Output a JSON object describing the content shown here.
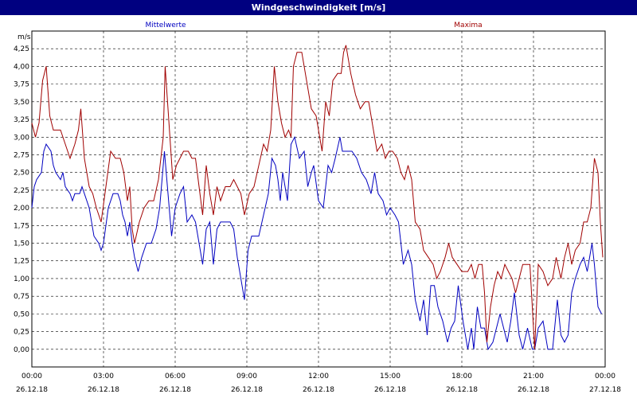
{
  "window": {
    "title": "Windgeschwindigkeit [m/s]"
  },
  "chart_data": {
    "type": "line",
    "title": "Windgeschwindigkeit [m/s]",
    "ylabel": "m/s",
    "ylim": [
      -0.25,
      4.5
    ],
    "xlim_hours": [
      0,
      24
    ],
    "yticks": [
      "0,00",
      "0,25",
      "0,50",
      "0,75",
      "1,00",
      "1,25",
      "1,50",
      "1,75",
      "2,00",
      "2,25",
      "2,50",
      "2,75",
      "3,00",
      "3,25",
      "3,50",
      "3,75",
      "4,00",
      "4,25"
    ],
    "xticks": [
      {
        "time": "00:00",
        "date": "26.12.18"
      },
      {
        "time": "03:00",
        "date": "26.12.18"
      },
      {
        "time": "06:00",
        "date": "26.12.18"
      },
      {
        "time": "09:00",
        "date": "26.12.18"
      },
      {
        "time": "12:00",
        "date": "26.12.18"
      },
      {
        "time": "15:00",
        "date": "26.12.18"
      },
      {
        "time": "18:00",
        "date": "26.12.18"
      },
      {
        "time": "21:00",
        "date": "26.12.18"
      },
      {
        "time": "00:00",
        "date": "27.12.18"
      }
    ],
    "grid": true,
    "series": [
      {
        "name": "Mittelwerte",
        "color": "#0000c0",
        "points": [
          [
            0.0,
            2.0
          ],
          [
            0.1,
            2.3
          ],
          [
            0.2,
            2.4
          ],
          [
            0.4,
            2.5
          ],
          [
            0.5,
            2.8
          ],
          [
            0.6,
            2.9
          ],
          [
            0.8,
            2.8
          ],
          [
            0.9,
            2.6
          ],
          [
            1.0,
            2.5
          ],
          [
            1.2,
            2.4
          ],
          [
            1.3,
            2.5
          ],
          [
            1.4,
            2.3
          ],
          [
            1.6,
            2.2
          ],
          [
            1.7,
            2.1
          ],
          [
            1.8,
            2.2
          ],
          [
            2.0,
            2.2
          ],
          [
            2.1,
            2.3
          ],
          [
            2.2,
            2.2
          ],
          [
            2.4,
            2.0
          ],
          [
            2.6,
            1.6
          ],
          [
            2.8,
            1.5
          ],
          [
            2.9,
            1.4
          ],
          [
            3.0,
            1.5
          ],
          [
            3.2,
            2.0
          ],
          [
            3.4,
            2.2
          ],
          [
            3.6,
            2.2
          ],
          [
            3.7,
            2.1
          ],
          [
            3.8,
            1.9
          ],
          [
            3.9,
            1.8
          ],
          [
            4.0,
            1.6
          ],
          [
            4.1,
            1.8
          ],
          [
            4.2,
            1.5
          ],
          [
            4.3,
            1.3
          ],
          [
            4.45,
            1.1
          ],
          [
            4.6,
            1.3
          ],
          [
            4.8,
            1.5
          ],
          [
            5.0,
            1.5
          ],
          [
            5.2,
            1.7
          ],
          [
            5.35,
            2.0
          ],
          [
            5.55,
            2.8
          ],
          [
            5.7,
            2.2
          ],
          [
            5.85,
            1.6
          ],
          [
            6.0,
            2.0
          ],
          [
            6.2,
            2.2
          ],
          [
            6.35,
            2.3
          ],
          [
            6.5,
            1.8
          ],
          [
            6.7,
            1.9
          ],
          [
            6.85,
            1.8
          ],
          [
            7.0,
            1.5
          ],
          [
            7.15,
            1.2
          ],
          [
            7.3,
            1.7
          ],
          [
            7.45,
            1.8
          ],
          [
            7.6,
            1.2
          ],
          [
            7.75,
            1.7
          ],
          [
            7.9,
            1.8
          ],
          [
            8.1,
            1.8
          ],
          [
            8.3,
            1.8
          ],
          [
            8.45,
            1.7
          ],
          [
            8.6,
            1.3
          ],
          [
            8.9,
            0.7
          ],
          [
            9.05,
            1.4
          ],
          [
            9.2,
            1.6
          ],
          [
            9.5,
            1.6
          ],
          [
            9.7,
            1.9
          ],
          [
            9.9,
            2.2
          ],
          [
            10.05,
            2.7
          ],
          [
            10.2,
            2.6
          ],
          [
            10.3,
            2.4
          ],
          [
            10.4,
            2.1
          ],
          [
            10.5,
            2.5
          ],
          [
            10.6,
            2.3
          ],
          [
            10.7,
            2.1
          ],
          [
            10.85,
            2.9
          ],
          [
            11.0,
            3.0
          ],
          [
            11.2,
            2.7
          ],
          [
            11.4,
            2.8
          ],
          [
            11.55,
            2.3
          ],
          [
            11.7,
            2.5
          ],
          [
            11.8,
            2.6
          ],
          [
            12.0,
            2.1
          ],
          [
            12.2,
            2.0
          ],
          [
            12.4,
            2.6
          ],
          [
            12.55,
            2.5
          ],
          [
            12.7,
            2.7
          ],
          [
            12.9,
            3.0
          ],
          [
            13.0,
            2.8
          ],
          [
            13.4,
            2.8
          ],
          [
            13.6,
            2.7
          ],
          [
            13.8,
            2.5
          ],
          [
            14.0,
            2.4
          ],
          [
            14.2,
            2.2
          ],
          [
            14.35,
            2.5
          ],
          [
            14.5,
            2.2
          ],
          [
            14.7,
            2.1
          ],
          [
            14.85,
            1.9
          ],
          [
            15.0,
            2.0
          ],
          [
            15.2,
            1.9
          ],
          [
            15.35,
            1.8
          ],
          [
            15.55,
            1.2
          ],
          [
            15.75,
            1.4
          ],
          [
            15.9,
            1.2
          ],
          [
            16.05,
            0.7
          ],
          [
            16.25,
            0.4
          ],
          [
            16.4,
            0.7
          ],
          [
            16.55,
            0.2
          ],
          [
            16.7,
            0.9
          ],
          [
            16.85,
            0.9
          ],
          [
            17.0,
            0.6
          ],
          [
            17.2,
            0.4
          ],
          [
            17.4,
            0.1
          ],
          [
            17.55,
            0.3
          ],
          [
            17.7,
            0.4
          ],
          [
            17.85,
            0.9
          ],
          [
            18.05,
            0.4
          ],
          [
            18.25,
            0.0
          ],
          [
            18.4,
            0.3
          ],
          [
            18.5,
            0.0
          ],
          [
            18.65,
            0.6
          ],
          [
            18.8,
            0.3
          ],
          [
            18.95,
            0.3
          ],
          [
            19.1,
            0.0
          ],
          [
            19.3,
            0.1
          ],
          [
            19.45,
            0.3
          ],
          [
            19.6,
            0.5
          ],
          [
            19.75,
            0.3
          ],
          [
            19.9,
            0.1
          ],
          [
            20.05,
            0.4
          ],
          [
            20.2,
            0.8
          ],
          [
            20.4,
            0.2
          ],
          [
            20.55,
            0.0
          ],
          [
            20.75,
            0.3
          ],
          [
            20.95,
            0.0
          ],
          [
            21.05,
            0.0
          ],
          [
            21.2,
            0.3
          ],
          [
            21.4,
            0.4
          ],
          [
            21.6,
            0.0
          ],
          [
            21.8,
            0.0
          ],
          [
            22.0,
            0.7
          ],
          [
            22.15,
            0.2
          ],
          [
            22.3,
            0.1
          ],
          [
            22.45,
            0.2
          ],
          [
            22.6,
            0.8
          ],
          [
            22.75,
            1.0
          ],
          [
            22.95,
            1.2
          ],
          [
            23.1,
            1.3
          ],
          [
            23.25,
            1.1
          ],
          [
            23.45,
            1.5
          ],
          [
            23.55,
            1.2
          ],
          [
            23.7,
            0.6
          ],
          [
            23.85,
            0.5
          ]
        ]
      },
      {
        "name": "Maxima",
        "color": "#a00000",
        "points": [
          [
            0.0,
            3.2
          ],
          [
            0.15,
            3.0
          ],
          [
            0.3,
            3.2
          ],
          [
            0.45,
            3.8
          ],
          [
            0.6,
            4.0
          ],
          [
            0.75,
            3.3
          ],
          [
            0.9,
            3.1
          ],
          [
            1.2,
            3.1
          ],
          [
            1.4,
            2.9
          ],
          [
            1.6,
            2.7
          ],
          [
            1.8,
            2.9
          ],
          [
            1.95,
            3.1
          ],
          [
            2.05,
            3.4
          ],
          [
            2.2,
            2.7
          ],
          [
            2.4,
            2.3
          ],
          [
            2.55,
            2.2
          ],
          [
            2.7,
            2.0
          ],
          [
            2.9,
            1.8
          ],
          [
            3.1,
            2.3
          ],
          [
            3.3,
            2.8
          ],
          [
            3.5,
            2.7
          ],
          [
            3.7,
            2.7
          ],
          [
            3.85,
            2.5
          ],
          [
            4.0,
            2.1
          ],
          [
            4.1,
            2.3
          ],
          [
            4.2,
            1.7
          ],
          [
            4.3,
            1.5
          ],
          [
            4.5,
            1.8
          ],
          [
            4.7,
            2.0
          ],
          [
            4.9,
            2.1
          ],
          [
            5.1,
            2.1
          ],
          [
            5.3,
            2.4
          ],
          [
            5.5,
            3.0
          ],
          [
            5.58,
            4.0
          ],
          [
            5.7,
            3.4
          ],
          [
            5.9,
            2.4
          ],
          [
            6.05,
            2.6
          ],
          [
            6.2,
            2.7
          ],
          [
            6.35,
            2.8
          ],
          [
            6.55,
            2.8
          ],
          [
            6.7,
            2.7
          ],
          [
            6.85,
            2.7
          ],
          [
            7.0,
            2.3
          ],
          [
            7.15,
            1.9
          ],
          [
            7.3,
            2.6
          ],
          [
            7.45,
            2.2
          ],
          [
            7.6,
            1.9
          ],
          [
            7.75,
            2.3
          ],
          [
            7.9,
            2.1
          ],
          [
            8.1,
            2.3
          ],
          [
            8.3,
            2.3
          ],
          [
            8.45,
            2.4
          ],
          [
            8.6,
            2.3
          ],
          [
            8.75,
            2.2
          ],
          [
            8.9,
            1.9
          ],
          [
            9.1,
            2.2
          ],
          [
            9.3,
            2.3
          ],
          [
            9.5,
            2.6
          ],
          [
            9.7,
            2.9
          ],
          [
            9.85,
            2.8
          ],
          [
            10.0,
            3.1
          ],
          [
            10.15,
            4.0
          ],
          [
            10.3,
            3.5
          ],
          [
            10.45,
            3.2
          ],
          [
            10.6,
            3.0
          ],
          [
            10.75,
            3.1
          ],
          [
            10.85,
            3.0
          ],
          [
            10.95,
            4.0
          ],
          [
            11.1,
            4.2
          ],
          [
            11.3,
            4.2
          ],
          [
            11.5,
            3.8
          ],
          [
            11.7,
            3.4
          ],
          [
            11.9,
            3.3
          ],
          [
            12.05,
            3.0
          ],
          [
            12.15,
            2.8
          ],
          [
            12.3,
            3.5
          ],
          [
            12.45,
            3.3
          ],
          [
            12.6,
            3.8
          ],
          [
            12.8,
            3.9
          ],
          [
            12.95,
            3.9
          ],
          [
            13.05,
            4.2
          ],
          [
            13.15,
            4.3
          ],
          [
            13.35,
            3.9
          ],
          [
            13.55,
            3.6
          ],
          [
            13.75,
            3.4
          ],
          [
            13.95,
            3.5
          ],
          [
            14.1,
            3.5
          ],
          [
            14.3,
            3.1
          ],
          [
            14.45,
            2.8
          ],
          [
            14.65,
            2.9
          ],
          [
            14.8,
            2.7
          ],
          [
            14.95,
            2.8
          ],
          [
            15.1,
            2.8
          ],
          [
            15.3,
            2.7
          ],
          [
            15.45,
            2.5
          ],
          [
            15.6,
            2.4
          ],
          [
            15.75,
            2.6
          ],
          [
            15.9,
            2.4
          ],
          [
            16.05,
            1.8
          ],
          [
            16.25,
            1.7
          ],
          [
            16.4,
            1.4
          ],
          [
            16.6,
            1.3
          ],
          [
            16.8,
            1.2
          ],
          [
            16.95,
            1.0
          ],
          [
            17.1,
            1.1
          ],
          [
            17.3,
            1.3
          ],
          [
            17.45,
            1.5
          ],
          [
            17.6,
            1.3
          ],
          [
            17.8,
            1.2
          ],
          [
            18.0,
            1.1
          ],
          [
            18.25,
            1.1
          ],
          [
            18.4,
            1.2
          ],
          [
            18.55,
            1.0
          ],
          [
            18.7,
            1.2
          ],
          [
            18.85,
            1.2
          ],
          [
            18.95,
            0.8
          ],
          [
            19.05,
            0.1
          ],
          [
            19.2,
            0.6
          ],
          [
            19.35,
            0.9
          ],
          [
            19.5,
            1.1
          ],
          [
            19.65,
            1.0
          ],
          [
            19.8,
            1.2
          ],
          [
            19.95,
            1.1
          ],
          [
            20.1,
            1.0
          ],
          [
            20.25,
            0.8
          ],
          [
            20.4,
            1.0
          ],
          [
            20.55,
            1.2
          ],
          [
            20.7,
            1.2
          ],
          [
            20.85,
            1.2
          ],
          [
            20.95,
            0.6
          ],
          [
            21.05,
            0.0
          ],
          [
            21.2,
            1.2
          ],
          [
            21.4,
            1.1
          ],
          [
            21.6,
            0.9
          ],
          [
            21.8,
            1.0
          ],
          [
            21.95,
            1.3
          ],
          [
            22.15,
            1.0
          ],
          [
            22.3,
            1.3
          ],
          [
            22.45,
            1.5
          ],
          [
            22.6,
            1.2
          ],
          [
            22.75,
            1.4
          ],
          [
            22.95,
            1.5
          ],
          [
            23.1,
            1.8
          ],
          [
            23.25,
            1.8
          ],
          [
            23.4,
            2.0
          ],
          [
            23.55,
            2.7
          ],
          [
            23.7,
            2.5
          ],
          [
            23.8,
            1.8
          ],
          [
            23.9,
            1.3
          ]
        ]
      }
    ]
  }
}
